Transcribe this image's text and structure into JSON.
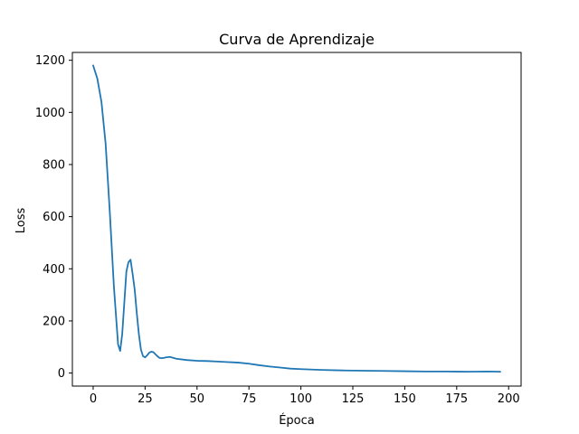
{
  "chart_data": {
    "type": "line",
    "title": "Curva de Aprendizaje",
    "xlabel": "Época",
    "ylabel": "Loss",
    "xlim": [
      -10,
      206
    ],
    "ylim": [
      -50,
      1230
    ],
    "xticks": [
      0,
      25,
      50,
      75,
      100,
      125,
      150,
      175,
      200
    ],
    "xtick_labels": [
      "0",
      "25",
      "50",
      "75",
      "100",
      "125",
      "150",
      "175",
      "200"
    ],
    "yticks": [
      0,
      200,
      400,
      600,
      800,
      1000,
      1200
    ],
    "ytick_labels": [
      "0",
      "200",
      "400",
      "600",
      "800",
      "1000",
      "1200"
    ],
    "grid": false,
    "line_color": "#1f77b4",
    "series": [
      {
        "x": [
          0,
          2,
          4,
          6,
          8,
          10,
          12,
          13,
          14,
          15,
          16,
          17,
          18,
          19,
          20,
          21,
          22,
          23,
          24,
          25,
          26,
          27,
          28,
          29,
          30,
          31,
          32,
          33,
          34,
          35,
          37,
          40,
          45,
          50,
          55,
          60,
          65,
          70,
          75,
          80,
          85,
          90,
          95,
          100,
          110,
          120,
          130,
          140,
          150,
          160,
          170,
          180,
          190,
          196
        ],
        "y": [
          1180,
          1130,
          1040,
          880,
          620,
          330,
          110,
          85,
          150,
          270,
          390,
          425,
          435,
          380,
          320,
          230,
          150,
          90,
          65,
          60,
          68,
          78,
          82,
          80,
          72,
          64,
          58,
          57,
          58,
          60,
          62,
          55,
          50,
          47,
          46,
          44,
          42,
          40,
          36,
          30,
          25,
          21,
          17,
          15,
          12,
          10,
          9,
          8,
          7,
          6,
          6,
          5,
          6,
          5
        ]
      }
    ]
  }
}
